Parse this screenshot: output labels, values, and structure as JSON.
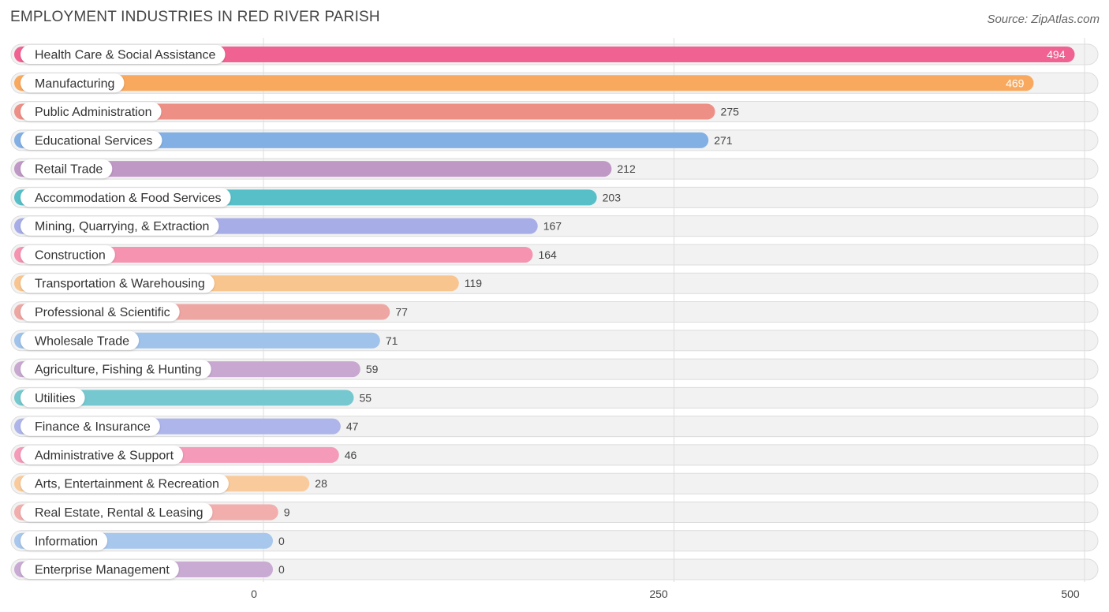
{
  "header": {
    "title": "EMPLOYMENT INDUSTRIES IN RED RIVER PARISH",
    "source": "Source: ZipAtlas.com"
  },
  "chart_data": {
    "type": "bar",
    "orientation": "horizontal",
    "title": "EMPLOYMENT INDUSTRIES IN RED RIVER PARISH",
    "xlim": [
      0,
      500
    ],
    "xticks": [
      0,
      250,
      500
    ],
    "grid": true,
    "categories": [
      "Health Care & Social Assistance",
      "Manufacturing",
      "Public Administration",
      "Educational Services",
      "Retail Trade",
      "Accommodation & Food Services",
      "Mining, Quarrying, & Extraction",
      "Construction",
      "Transportation & Warehousing",
      "Professional & Scientific",
      "Wholesale Trade",
      "Agriculture, Fishing & Hunting",
      "Utilities",
      "Finance & Insurance",
      "Administrative & Support",
      "Arts, Entertainment & Recreation",
      "Real Estate, Rental & Leasing",
      "Information",
      "Enterprise Management"
    ],
    "values": [
      494,
      469,
      275,
      271,
      212,
      203,
      167,
      164,
      119,
      77,
      71,
      59,
      55,
      47,
      46,
      28,
      9,
      0,
      0
    ],
    "colors": [
      "#f06292",
      "#f8a95e",
      "#ee8f86",
      "#82b0e4",
      "#bf98c6",
      "#57bfc8",
      "#a7ade6",
      "#f593b1",
      "#f9c58f",
      "#eea6a3",
      "#9fc3ea",
      "#c8a8d0",
      "#75c8cf",
      "#aeb5ea",
      "#f59ab8",
      "#f9cb9c",
      "#f2aeac",
      "#a8c7ec",
      "#c9aad3"
    ]
  }
}
